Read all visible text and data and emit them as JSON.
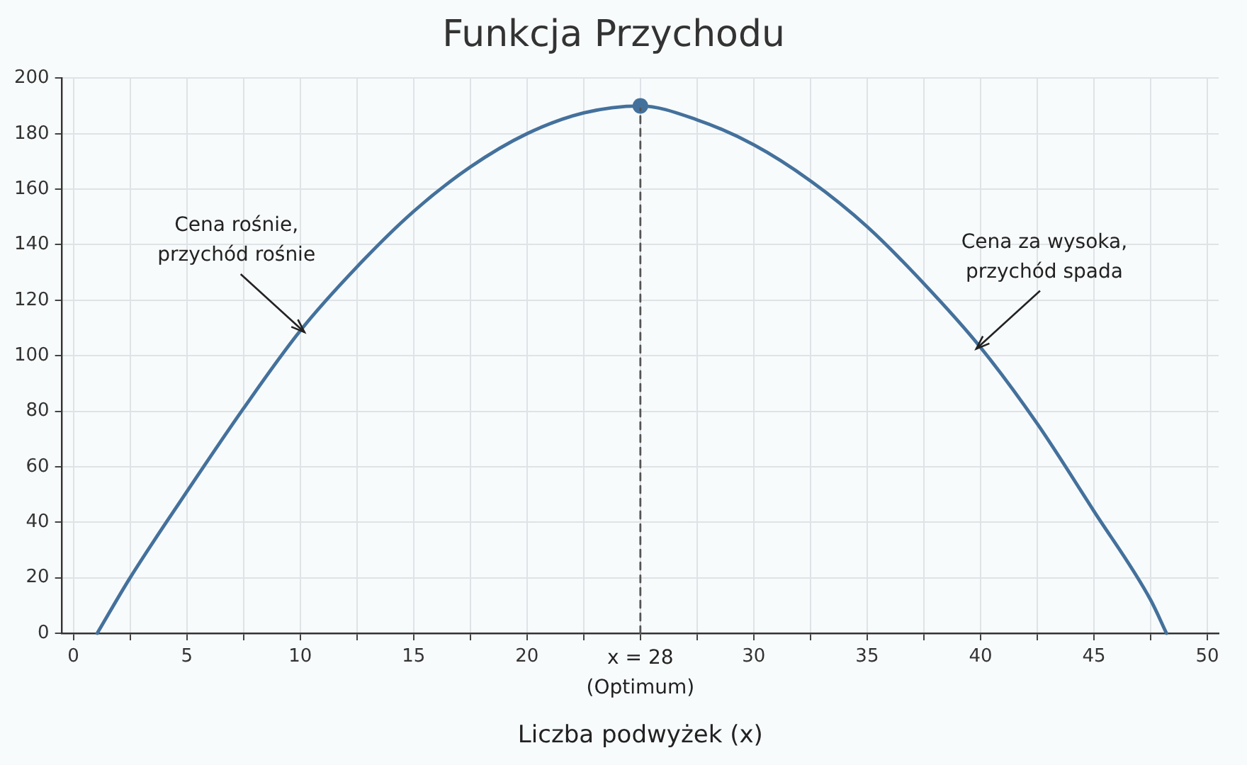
{
  "chart_data": {
    "type": "line",
    "title": "Funkcja Przychodu",
    "xlabel": "Liczba podwyżek (x)",
    "xlim": [
      -0.5,
      50.5
    ],
    "xticks": [
      0,
      {
        "value": 2.5,
        "label": null
      },
      5,
      {
        "value": 7.5,
        "label": null
      },
      10,
      {
        "value": 12.5,
        "label": null
      },
      15,
      {
        "value": 17.5,
        "label": null
      },
      20,
      {
        "value": 22.5,
        "label": null
      },
      {
        "value": 25,
        "label": null
      },
      {
        "value": 27.5,
        "label": null
      },
      30,
      {
        "value": 32.5,
        "label": null
      },
      35,
      {
        "value": 37.5,
        "label": null
      },
      40,
      {
        "value": 42.5,
        "label": null
      },
      45,
      {
        "value": 47.5,
        "label": null
      },
      50
    ],
    "ylim": [
      0,
      200
    ],
    "yticks": [
      0,
      20,
      40,
      60,
      80,
      100,
      120,
      140,
      160,
      180,
      200
    ],
    "grid": true,
    "series": [
      {
        "color": "#44719c",
        "marker": "none",
        "x": [
          1.05,
          2.5,
          5,
          7.5,
          10,
          12.5,
          15,
          17.5,
          20,
          22.5,
          25,
          27.5,
          30,
          32.5,
          35,
          37.5,
          40,
          42.5,
          45,
          47.5,
          48.2
        ],
        "values": [
          0,
          20,
          51,
          81,
          109,
          132,
          152,
          168,
          180,
          187.5,
          190,
          185,
          176,
          163,
          146.5,
          126,
          103,
          75.5,
          44,
          12,
          0
        ]
      },
      {
        "color": "#555555",
        "marker": "none",
        "line_style": "dashed",
        "x": [
          25,
          25
        ],
        "values": [
          0,
          190
        ]
      },
      {
        "type": "scatter",
        "color": "#44719c",
        "marker": "circle",
        "x": [
          25
        ],
        "values": [
          190
        ]
      }
    ],
    "annotations": [
      {
        "text": "Cena rośnie,\nprzychód rośnie",
        "x": 10,
        "y": 109
      },
      {
        "text": "Cena za wysoka,\nprzychód spada",
        "x": 40,
        "y": 103
      },
      {
        "text": "x = 28\n(Optimum)",
        "x": 25,
        "y": 0
      }
    ]
  }
}
